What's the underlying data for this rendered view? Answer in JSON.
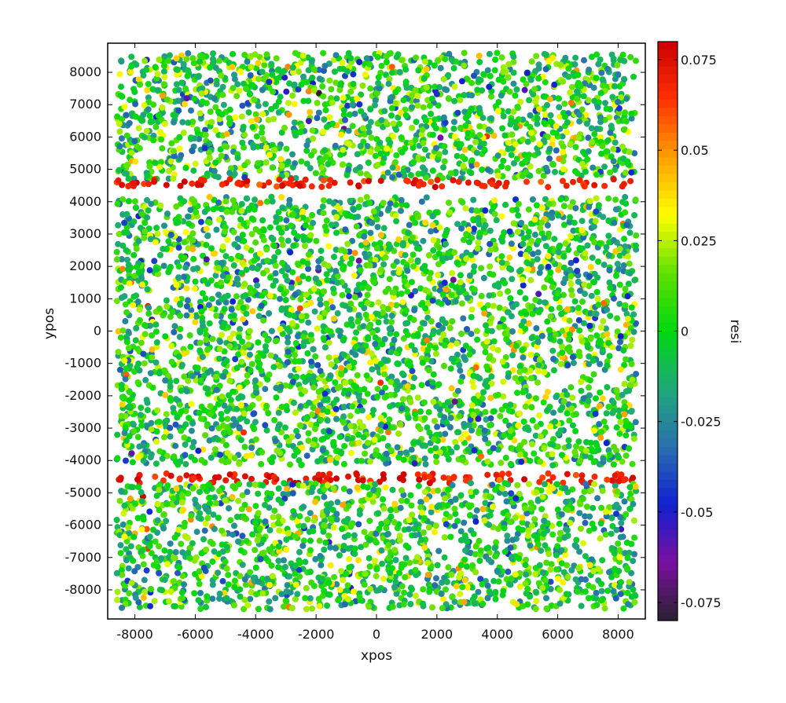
{
  "chart_data": {
    "type": "scatter",
    "title": "",
    "xlabel": "xpos",
    "ylabel": "ypos",
    "colorbar_label": "resi",
    "xlim": [
      -8900,
      8900
    ],
    "ylim": [
      -8900,
      8900
    ],
    "x_ticks": [
      -8000,
      -6000,
      -4000,
      -2000,
      0,
      2000,
      4000,
      6000,
      8000
    ],
    "x_tick_labels": [
      "-8000",
      "-6000",
      "-4000",
      "-2000",
      "0",
      "2000",
      "4000",
      "6000",
      "8000"
    ],
    "y_ticks": [
      8000,
      7000,
      6000,
      5000,
      4000,
      3000,
      2000,
      1000,
      0,
      -1000,
      -2000,
      -3000,
      -4000,
      -5000,
      -6000,
      -7000,
      -8000
    ],
    "y_tick_labels": [
      "8000",
      "7000",
      "6000",
      "5000",
      "4000",
      "3000",
      "2000",
      "1000",
      "0",
      "-1000",
      "-2000",
      "-3000",
      "-4000",
      "-5000",
      "-6000",
      "-7000",
      "-8000"
    ],
    "color_range": [
      -0.08,
      0.08
    ],
    "colorbar_ticks": [
      0.075,
      0.05,
      0.025,
      0,
      -0.025,
      -0.05,
      -0.075
    ],
    "colorbar_tick_labels": [
      "0.075",
      "0.05",
      "0.025",
      "0",
      "-0.025",
      "-0.05",
      "-0.075"
    ],
    "colormap": [
      "#2a2030",
      "#7a10a0",
      "#1020d0",
      "#2a70b0",
      "#1fa87a",
      "#00d810",
      "#60e000",
      "#ffff00",
      "#ffa000",
      "#ff3000",
      "#cc0000"
    ],
    "point_regions": [
      {
        "name": "upper-band",
        "x_range": [
          -8600,
          8600
        ],
        "y_range": [
          4700,
          8600
        ],
        "mean_resi": 0.0,
        "spread": 0.02
      },
      {
        "name": "upper-edge-stripe",
        "x_range": [
          -8600,
          8600
        ],
        "y_range": [
          4450,
          4700
        ],
        "mean_resi": 0.07,
        "spread": 0.006
      },
      {
        "name": "center-band",
        "x_range": [
          -8600,
          8600
        ],
        "y_range": [
          -4150,
          4150
        ],
        "mean_resi": 0.0,
        "spread": 0.02
      },
      {
        "name": "lower-edge-stripe",
        "x_range": [
          -8600,
          8600
        ],
        "y_range": [
          -4700,
          -4400
        ],
        "mean_resi": 0.07,
        "spread": 0.006
      },
      {
        "name": "lower-band",
        "x_range": [
          -8600,
          8600
        ],
        "y_range": [
          -8600,
          -4700
        ],
        "mean_resi": 0.0,
        "spread": 0.02
      }
    ],
    "grid": false,
    "legend": "none"
  }
}
